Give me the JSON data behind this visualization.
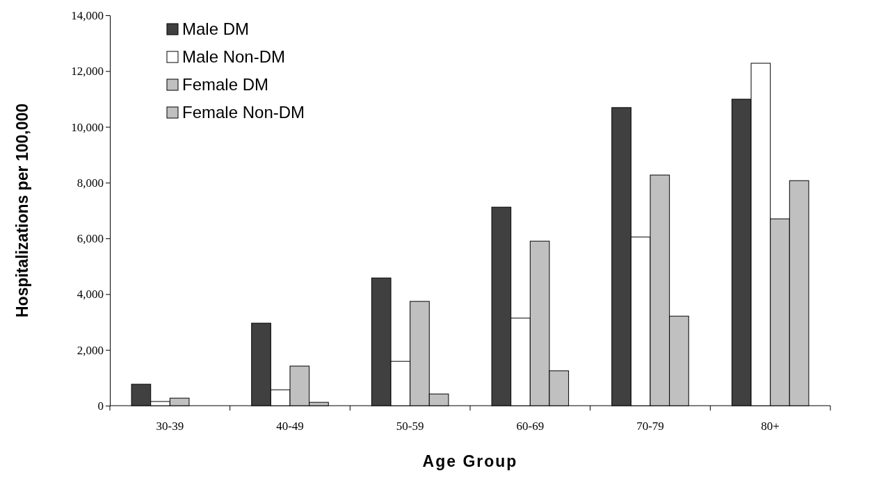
{
  "chart_data": {
    "type": "bar",
    "xlabel": "Age Group",
    "ylabel": "Hospitalizations per 100,000",
    "categories": [
      "30-39",
      "40-49",
      "50-59",
      "60-69",
      "70-79",
      "80+"
    ],
    "series": [
      {
        "name": "Male DM",
        "color": "#404040",
        "values": [
          770,
          2960,
          4580,
          7120,
          10690,
          10990
        ]
      },
      {
        "name": "Male Non-DM",
        "color": "#ffffff",
        "values": [
          150,
          570,
          1590,
          3140,
          6050,
          12280
        ]
      },
      {
        "name": "Female DM",
        "color": "#c0c0c0",
        "values": [
          270,
          1420,
          3740,
          5900,
          8270,
          6700
        ]
      },
      {
        "name": "Female Non-DM",
        "color": "#c0c0c0",
        "values": [
          null,
          120,
          420,
          1250,
          3210,
          8070
        ]
      }
    ],
    "ylim": [
      0,
      14000
    ],
    "yticks": [
      {
        "value": 0,
        "label": "0"
      },
      {
        "value": 2000,
        "label": "2,000"
      },
      {
        "value": 4000,
        "label": "4,000"
      },
      {
        "value": 6000,
        "label": "6,000"
      },
      {
        "value": 8000,
        "label": "8,000"
      },
      {
        "value": 10000,
        "label": "10,000"
      },
      {
        "value": 12000,
        "label": "12,000"
      },
      {
        "value": 14000,
        "label": "14,000"
      }
    ],
    "legend": "top left",
    "grid": false
  }
}
